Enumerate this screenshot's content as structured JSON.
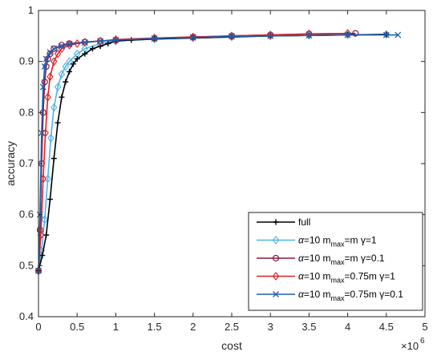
{
  "chart_data": {
    "type": "line",
    "xlabel": "cost",
    "ylabel": "accuracy",
    "x_exponent": "×10",
    "x_exponent_power": "6",
    "xlim": [
      0,
      5
    ],
    "ylim": [
      0.4,
      1.0
    ],
    "xticks": [
      "0",
      "0.5",
      "1",
      "1.5",
      "2",
      "2.5",
      "3",
      "3.5",
      "4",
      "4.5",
      "5"
    ],
    "yticks": [
      "0.4",
      "0.5",
      "0.6",
      "0.7",
      "0.8",
      "0.9",
      "1"
    ],
    "grid": false,
    "legend_position": "bottom-right",
    "series": [
      {
        "legend_label": "full",
        "color": "#000000",
        "marker": "plus",
        "x": [
          0.0,
          0.05,
          0.1,
          0.15,
          0.2,
          0.25,
          0.3,
          0.35,
          0.4,
          0.45,
          0.5,
          0.6,
          0.7,
          0.8,
          0.9,
          1.0,
          1.2,
          1.5,
          2.0,
          2.5,
          3.0,
          3.5,
          4.0,
          4.5
        ],
        "y": [
          0.49,
          0.52,
          0.56,
          0.63,
          0.71,
          0.78,
          0.83,
          0.86,
          0.88,
          0.895,
          0.905,
          0.915,
          0.925,
          0.93,
          0.935,
          0.94,
          0.942,
          0.944,
          0.946,
          0.948,
          0.95,
          0.951,
          0.952,
          0.953
        ]
      },
      {
        "legend_label": "=10 m",
        "legend_greek": "α",
        "legend_sub": "max",
        "legend_tail": "=m γ=1",
        "color": "#4fb4e8",
        "marker": "diamond",
        "x": [
          0.0,
          0.04,
          0.08,
          0.12,
          0.16,
          0.2,
          0.25,
          0.3,
          0.35,
          0.4,
          0.5,
          0.6,
          0.8,
          1.0,
          1.5,
          2.0,
          2.5,
          3.0,
          3.5,
          4.0,
          4.5
        ],
        "y": [
          0.49,
          0.53,
          0.59,
          0.67,
          0.75,
          0.81,
          0.85,
          0.875,
          0.89,
          0.9,
          0.915,
          0.925,
          0.935,
          0.94,
          0.944,
          0.946,
          0.948,
          0.95,
          0.951,
          0.952,
          0.953
        ]
      },
      {
        "legend_label": "=10 m",
        "legend_greek": "α",
        "legend_sub": "max",
        "legend_tail": "=m γ=0.1",
        "color": "#8b1a3a",
        "marker": "circle",
        "x": [
          0.0,
          0.02,
          0.04,
          0.06,
          0.08,
          0.1,
          0.12,
          0.15,
          0.2,
          0.3,
          0.4,
          0.6,
          0.8,
          1.0,
          1.5,
          2.0,
          2.5,
          3.0,
          3.5,
          4.1
        ],
        "y": [
          0.49,
          0.57,
          0.7,
          0.8,
          0.86,
          0.89,
          0.905,
          0.915,
          0.925,
          0.932,
          0.935,
          0.938,
          0.94,
          0.942,
          0.945,
          0.948,
          0.95,
          0.952,
          0.954,
          0.955
        ]
      },
      {
        "legend_label": "=10 m",
        "legend_greek": "α",
        "legend_sub": "max",
        "legend_tail": "=0.75m γ=1",
        "color": "#e02020",
        "marker": "diamond",
        "x": [
          0.0,
          0.03,
          0.06,
          0.09,
          0.12,
          0.15,
          0.2,
          0.25,
          0.3,
          0.4,
          0.5,
          0.6,
          0.8,
          1.0,
          1.5,
          2.0,
          2.5,
          3.0,
          3.5,
          4.0
        ],
        "y": [
          0.49,
          0.56,
          0.67,
          0.76,
          0.83,
          0.87,
          0.9,
          0.915,
          0.925,
          0.932,
          0.935,
          0.938,
          0.94,
          0.943,
          0.946,
          0.948,
          0.95,
          0.952,
          0.954,
          0.955
        ]
      },
      {
        "legend_label": "=10 m",
        "legend_greek": "α",
        "legend_sub": "max",
        "legend_tail": "=0.75m γ=0.1",
        "color": "#1f5fb0",
        "marker": "x",
        "x": [
          0.0,
          0.02,
          0.04,
          0.06,
          0.08,
          0.1,
          0.15,
          0.2,
          0.3,
          0.4,
          0.6,
          0.8,
          1.0,
          1.5,
          2.0,
          2.5,
          3.0,
          3.5,
          4.0,
          4.5,
          4.65
        ],
        "y": [
          0.49,
          0.6,
          0.76,
          0.85,
          0.89,
          0.905,
          0.918,
          0.925,
          0.93,
          0.934,
          0.937,
          0.94,
          0.942,
          0.945,
          0.947,
          0.949,
          0.95,
          0.951,
          0.952,
          0.952,
          0.952
        ]
      }
    ]
  }
}
